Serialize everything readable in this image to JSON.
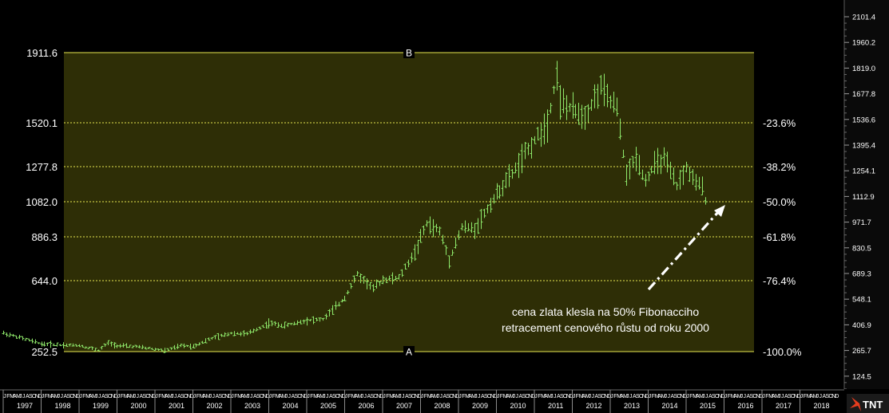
{
  "chart_data": {
    "type": "bar",
    "subtype": "ohlc-monthly",
    "title": "",
    "xlabel": "",
    "ylabel": "",
    "fibonacci": {
      "low_label": "A",
      "high_label": "B",
      "levels": [
        {
          "price": 1911.6,
          "price_label": "1911.6",
          "pct_label": ""
        },
        {
          "price": 1520.1,
          "price_label": "1520.1",
          "pct_label": "-23.6%"
        },
        {
          "price": 1277.8,
          "price_label": "1277.8",
          "pct_label": "-38.2%"
        },
        {
          "price": 1082.0,
          "price_label": "1082.0",
          "pct_label": "-50.0%"
        },
        {
          "price": 886.3,
          "price_label": "886.3",
          "pct_label": "-61.8%"
        },
        {
          "price": 644.0,
          "price_label": "644.0",
          "pct_label": "-76.4%"
        },
        {
          "price": 252.5,
          "price_label": "252.5",
          "pct_label": "-100.0%"
        }
      ]
    },
    "y_axis_ticks": [
      "2101.4",
      "1960.2",
      "1819.0",
      "1677.8",
      "1536.6",
      "1395.4",
      "1254.1",
      "1112.9",
      "971.7",
      "830.5",
      "689.3",
      "548.1",
      "406.9",
      "265.7",
      "124.5"
    ],
    "y_axis_values": [
      2101.4,
      1960.2,
      1819.0,
      1677.8,
      1536.6,
      1395.4,
      1254.1,
      1112.9,
      971.7,
      830.5,
      689.3,
      548.1,
      406.9,
      265.7,
      124.5
    ],
    "x_years": [
      "1997",
      "1998",
      "1999",
      "2000",
      "2001",
      "2002",
      "2003",
      "2004",
      "2005",
      "2006",
      "2007",
      "2008",
      "2009",
      "2010",
      "2011",
      "2012",
      "2013",
      "2014",
      "2015",
      "2016",
      "2017",
      "2018"
    ],
    "x_month_labels": [
      "J",
      "F",
      "M",
      "A",
      "M",
      "J",
      "J",
      "A",
      "S",
      "O",
      "N",
      "D"
    ],
    "series": [
      {
        "x": "1997-01",
        "y": 355
      },
      {
        "x": "1997-07",
        "y": 325
      },
      {
        "x": "1998-01",
        "y": 295
      },
      {
        "x": "1998-07",
        "y": 290
      },
      {
        "x": "1999-01",
        "y": 287
      },
      {
        "x": "1999-07",
        "y": 260
      },
      {
        "x": "1999-10",
        "y": 300
      },
      {
        "x": "2000-01",
        "y": 285
      },
      {
        "x": "2000-07",
        "y": 280
      },
      {
        "x": "2001-01",
        "y": 266
      },
      {
        "x": "2001-04",
        "y": 257
      },
      {
        "x": "2001-09",
        "y": 285
      },
      {
        "x": "2002-01",
        "y": 282
      },
      {
        "x": "2002-06",
        "y": 320
      },
      {
        "x": "2003-01",
        "y": 355
      },
      {
        "x": "2003-06",
        "y": 350
      },
      {
        "x": "2004-01",
        "y": 410
      },
      {
        "x": "2004-06",
        "y": 395
      },
      {
        "x": "2005-01",
        "y": 425
      },
      {
        "x": "2005-06",
        "y": 430
      },
      {
        "x": "2006-01",
        "y": 550
      },
      {
        "x": "2006-05",
        "y": 680
      },
      {
        "x": "2006-10",
        "y": 600
      },
      {
        "x": "2007-01",
        "y": 650
      },
      {
        "x": "2007-06",
        "y": 660
      },
      {
        "x": "2007-11",
        "y": 800
      },
      {
        "x": "2008-03",
        "y": 960
      },
      {
        "x": "2008-07",
        "y": 920
      },
      {
        "x": "2008-10",
        "y": 760
      },
      {
        "x": "2009-02",
        "y": 940
      },
      {
        "x": "2009-06",
        "y": 930
      },
      {
        "x": "2009-12",
        "y": 1100
      },
      {
        "x": "2010-06",
        "y": 1240
      },
      {
        "x": "2010-12",
        "y": 1400
      },
      {
        "x": "2011-05",
        "y": 1520
      },
      {
        "x": "2011-08",
        "y": 1800
      },
      {
        "x": "2011-09",
        "y": 1640
      },
      {
        "x": "2011-12",
        "y": 1600
      },
      {
        "x": "2012-05",
        "y": 1560
      },
      {
        "x": "2012-10",
        "y": 1720
      },
      {
        "x": "2012-12",
        "y": 1660
      },
      {
        "x": "2013-03",
        "y": 1600
      },
      {
        "x": "2013-04",
        "y": 1470
      },
      {
        "x": "2013-06",
        "y": 1230
      },
      {
        "x": "2013-09",
        "y": 1330
      },
      {
        "x": "2013-12",
        "y": 1200
      },
      {
        "x": "2014-03",
        "y": 1290
      },
      {
        "x": "2014-06",
        "y": 1320
      },
      {
        "x": "2014-10",
        "y": 1170
      },
      {
        "x": "2015-01",
        "y": 1270
      },
      {
        "x": "2015-04",
        "y": 1180
      },
      {
        "x": "2015-06",
        "y": 1170
      },
      {
        "x": "2015-07",
        "y": 1095
      }
    ],
    "legend": "none",
    "grid": false
  },
  "annotation": {
    "line1": "cena zlata klesla na 50% Fibonacciho",
    "line2": "retracement cenového růstu od roku 2000"
  },
  "logo_text": "TNT",
  "colors": {
    "background": "#000000",
    "plot_band": "#2e2e06",
    "fib_line": "#e6e650",
    "bars": "#8ee86a",
    "text": "#ffffff",
    "axis_panel": "#0a0a0a"
  }
}
